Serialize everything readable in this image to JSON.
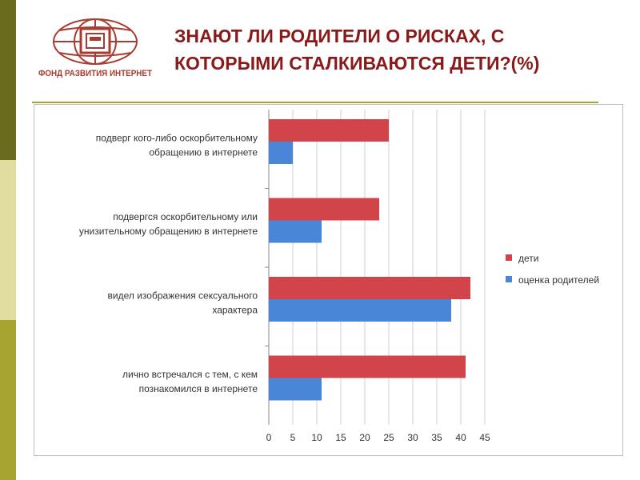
{
  "logo": {
    "name_text": "ФОНД РАЗВИТИЯ ИНТЕРНЕТ"
  },
  "title": {
    "line1": "ЗНАЮТ ЛИ РОДИТЕЛИ О РИСКАХ, С",
    "line2": "КОТОРЫМИ СТАЛКИВАЮТСЯ ДЕТИ?(%)"
  },
  "colors": {
    "children": "#d0444a",
    "parents": "#4a86d8",
    "title": "#8a1a1a",
    "accent": "#a7a530"
  },
  "chart_data": {
    "type": "bar",
    "orientation": "horizontal",
    "categories": [
      [
        "подверг кого-либо оскорбительному",
        "обращению в интернете"
      ],
      [
        "подвергся оскорбительному или",
        "унизительному обращению в интернете"
      ],
      [
        "видел изображения сексуального",
        "характера"
      ],
      [
        "лично встречался с тем, с кем",
        "познакомился в интернете"
      ]
    ],
    "series": [
      {
        "name": "дети",
        "values": [
          25,
          23,
          42,
          41
        ]
      },
      {
        "name": "оценка родителей",
        "values": [
          5,
          11,
          38,
          11
        ]
      }
    ],
    "xticks": [
      "0",
      "5",
      "10",
      "15",
      "20",
      "25",
      "30",
      "35",
      "40",
      "45"
    ],
    "xlim": [
      0,
      45
    ],
    "grid": true,
    "legend_position": "right"
  }
}
